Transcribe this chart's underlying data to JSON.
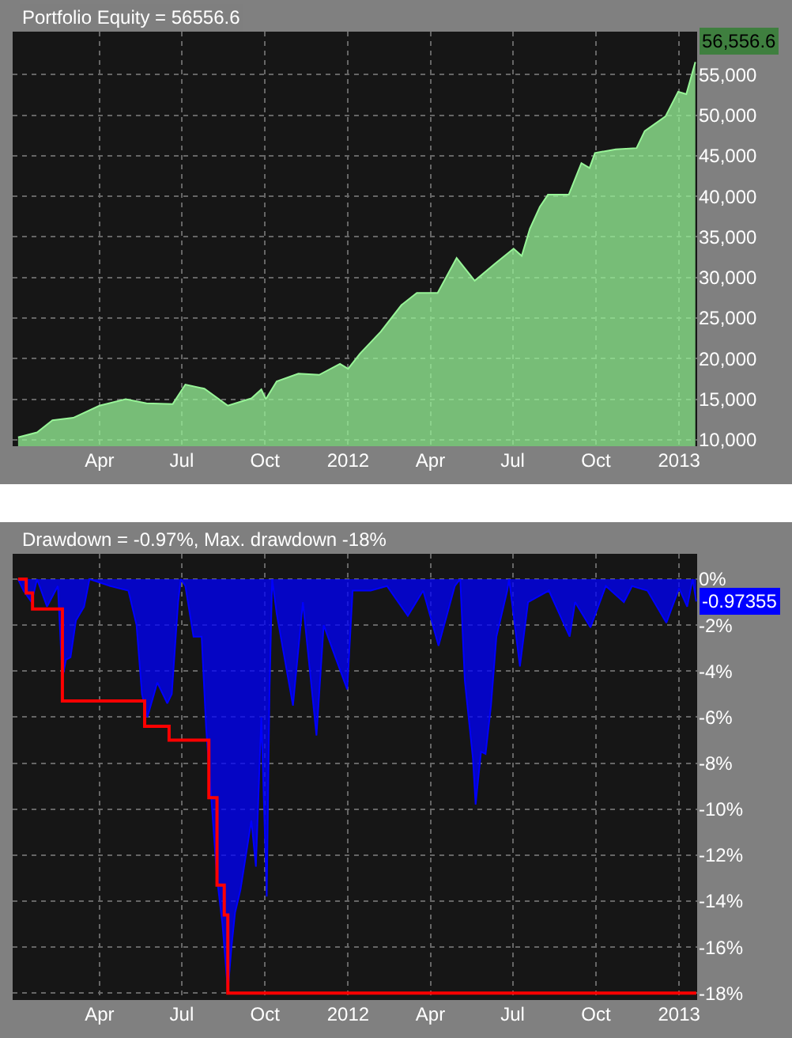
{
  "chart_data": [
    {
      "type": "area",
      "title": "Portfolio Equity = 56556.6",
      "x": [
        "2011-01-01",
        "2011-01-22",
        "2011-02-08",
        "2011-03-03",
        "2011-04-01",
        "2011-04-30",
        "2011-05-23",
        "2011-06-21",
        "2011-07-05",
        "2011-07-26",
        "2011-08-21",
        "2011-09-16",
        "2011-09-27",
        "2011-10-02",
        "2011-10-14",
        "2011-11-07",
        "2011-11-30",
        "2011-12-23",
        "2012-01-01",
        "2012-01-14",
        "2012-02-06",
        "2012-02-29",
        "2012-03-17",
        "2012-04-09",
        "2012-04-30",
        "2012-05-20",
        "2012-06-12",
        "2012-07-02",
        "2012-07-11",
        "2012-07-20",
        "2012-07-31",
        "2012-08-09",
        "2012-09-01",
        "2012-09-15",
        "2012-09-24",
        "2012-09-30",
        "2012-10-23",
        "2012-11-15",
        "2012-11-24",
        "2012-12-17",
        "2012-12-31",
        "2013-01-09",
        "2013-01-19"
      ],
      "values": [
        10300,
        10900,
        12400,
        12700,
        14200,
        15000,
        14500,
        14400,
        16800,
        16300,
        14200,
        15100,
        16200,
        15000,
        17200,
        18150,
        18000,
        19350,
        18750,
        20600,
        23300,
        26600,
        28100,
        28100,
        32400,
        29600,
        31750,
        33550,
        32650,
        36000,
        38700,
        40200,
        40200,
        44100,
        43500,
        45350,
        45800,
        45950,
        48050,
        49850,
        52900,
        52600,
        56556.6
      ],
      "color": "#98f598",
      "xlim": [
        "2010-12-26",
        "2013-01-21"
      ],
      "xticks": [
        {
          "value": "2011-04-01",
          "label": "Apr"
        },
        {
          "value": "2011-07-01",
          "label": "Jul"
        },
        {
          "value": "2011-10-01",
          "label": "Oct"
        },
        {
          "value": "2012-01-01",
          "label": "2012"
        },
        {
          "value": "2012-04-01",
          "label": "Apr"
        },
        {
          "value": "2012-07-01",
          "label": "Jul"
        },
        {
          "value": "2012-10-01",
          "label": "Oct"
        },
        {
          "value": "2013-01-01",
          "label": "2013"
        }
      ],
      "ylim": [
        9200,
        60300
      ],
      "yticks": [
        {
          "value": 10000,
          "label": "10,000"
        },
        {
          "value": 15000,
          "label": "15,000"
        },
        {
          "value": 20000,
          "label": "20,000"
        },
        {
          "value": 25000,
          "label": "25,000"
        },
        {
          "value": 30000,
          "label": "30,000"
        },
        {
          "value": 35000,
          "label": "35,000"
        },
        {
          "value": 40000,
          "label": "40,000"
        },
        {
          "value": 45000,
          "label": "45,000"
        },
        {
          "value": 50000,
          "label": "50,000"
        },
        {
          "value": 55000,
          "label": "55,000"
        }
      ],
      "grid": true,
      "annotations": [
        {
          "text": "56,556.6",
          "x": "2013-01-19",
          "y": 56556.6
        }
      ]
    },
    {
      "type": "area",
      "title": "Drawdown = -0.97%, Max. drawdown -18%",
      "series": [
        {
          "type": "area",
          "color": "#0000ff",
          "x": [
            "2011-01-01",
            "2011-01-07",
            "2011-01-16",
            "2011-01-22",
            "2011-02-02",
            "2011-02-14",
            "2011-02-19",
            "2011-02-23",
            "2011-02-28",
            "2011-03-06",
            "2011-03-15",
            "2011-03-21",
            "2011-04-13",
            "2011-05-03",
            "2011-05-12",
            "2011-05-18",
            "2011-05-24",
            "2011-06-04",
            "2011-06-15",
            "2011-06-20",
            "2011-06-27",
            "2011-06-30",
            "2011-07-05",
            "2011-07-14",
            "2011-07-23",
            "2011-07-28",
            "2011-08-03",
            "2011-08-09",
            "2011-08-15",
            "2011-08-21",
            "2011-08-25",
            "2011-08-29",
            "2011-09-04",
            "2011-09-10",
            "2011-09-16",
            "2011-09-21",
            "2011-09-27",
            "2011-10-03",
            "2011-10-06",
            "2011-10-09",
            "2011-10-14",
            "2011-11-01",
            "2011-11-12",
            "2011-11-27",
            "2011-12-05",
            "2011-12-17",
            "2011-12-31",
            "2012-01-06",
            "2012-01-26",
            "2012-02-13",
            "2012-03-07",
            "2012-03-24",
            "2012-04-10",
            "2012-04-28",
            "2012-05-04",
            "2012-05-09",
            "2012-05-18",
            "2012-05-21",
            "2012-05-27",
            "2012-06-01",
            "2012-06-07",
            "2012-06-13",
            "2012-06-25",
            "2012-06-27",
            "2012-07-09",
            "2012-07-18",
            "2012-08-10",
            "2012-09-02",
            "2012-09-08",
            "2012-09-25",
            "2012-10-12",
            "2012-11-01",
            "2012-11-10",
            "2012-11-27",
            "2012-12-18",
            "2013-01-01",
            "2013-01-10",
            "2013-01-16",
            "2013-01-20"
          ],
          "values": [
            0,
            -0.5,
            -1.0,
            0,
            -1.2,
            -0.3,
            -4.3,
            -3.5,
            -3.4,
            -1.8,
            -1.2,
            0,
            -0.3,
            -0.5,
            -2.0,
            -5.0,
            -6.0,
            -4.5,
            -5.4,
            -5.0,
            -1.0,
            0,
            -0.3,
            -2.5,
            -2.5,
            -6.5,
            -9.7,
            -13.0,
            -15.0,
            -17.9,
            -16.0,
            -14.5,
            -13.5,
            -12.0,
            -10.5,
            -12.5,
            -6.0,
            -13.8,
            -5.0,
            0,
            -1.5,
            -5.5,
            -1.0,
            -6.8,
            -2.0,
            -3.3,
            -4.8,
            -0.5,
            -0.5,
            -0.3,
            -1.6,
            -0.5,
            -2.9,
            -0.3,
            0,
            -4.4,
            -7.8,
            -9.8,
            -7.5,
            -7.6,
            -5.5,
            -2.5,
            -0.5,
            0,
            -3.8,
            -1.0,
            -0.5,
            -2.5,
            -1.0,
            -2.1,
            -0.3,
            -1.0,
            -0.3,
            -0.5,
            -1.9,
            -0.4,
            -1.2,
            0,
            -0.97355
          ]
        },
        {
          "type": "step",
          "color": "#ff0000",
          "x": [
            "2011-01-01",
            "2011-01-10",
            "2011-01-17",
            "2011-02-19",
            "2011-05-21",
            "2011-06-17",
            "2011-07-31",
            "2011-08-09",
            "2011-08-17",
            "2011-08-21",
            "2013-01-20"
          ],
          "values": [
            0,
            -0.6,
            -1.3,
            -5.3,
            -6.4,
            -7.0,
            -9.5,
            -13.3,
            -14.6,
            -18.0,
            -18.0
          ]
        }
      ],
      "xlim": [
        "2010-12-26",
        "2013-01-21"
      ],
      "xticks": [
        {
          "value": "2011-04-01",
          "label": "Apr"
        },
        {
          "value": "2011-07-01",
          "label": "Jul"
        },
        {
          "value": "2011-10-01",
          "label": "Oct"
        },
        {
          "value": "2012-01-01",
          "label": "2012"
        },
        {
          "value": "2012-04-01",
          "label": "Apr"
        },
        {
          "value": "2012-07-01",
          "label": "Jul"
        },
        {
          "value": "2012-10-01",
          "label": "Oct"
        },
        {
          "value": "2013-01-01",
          "label": "2013"
        }
      ],
      "ylim": [
        -18.3,
        1.1
      ],
      "yticks": [
        {
          "value": 0,
          "label": "0%"
        },
        {
          "value": -2,
          "label": "-2%"
        },
        {
          "value": -4,
          "label": "-4%"
        },
        {
          "value": -6,
          "label": "-6%"
        },
        {
          "value": -8,
          "label": "-8%"
        },
        {
          "value": -10,
          "label": "-10%"
        },
        {
          "value": -12,
          "label": "-12%"
        },
        {
          "value": -14,
          "label": "-14%"
        },
        {
          "value": -16,
          "label": "-16%"
        },
        {
          "value": -18,
          "label": "-18%"
        }
      ],
      "grid": true,
      "annotations": [
        {
          "text": "-0.97355",
          "x": "2013-01-20",
          "y": -0.97355
        }
      ]
    }
  ]
}
